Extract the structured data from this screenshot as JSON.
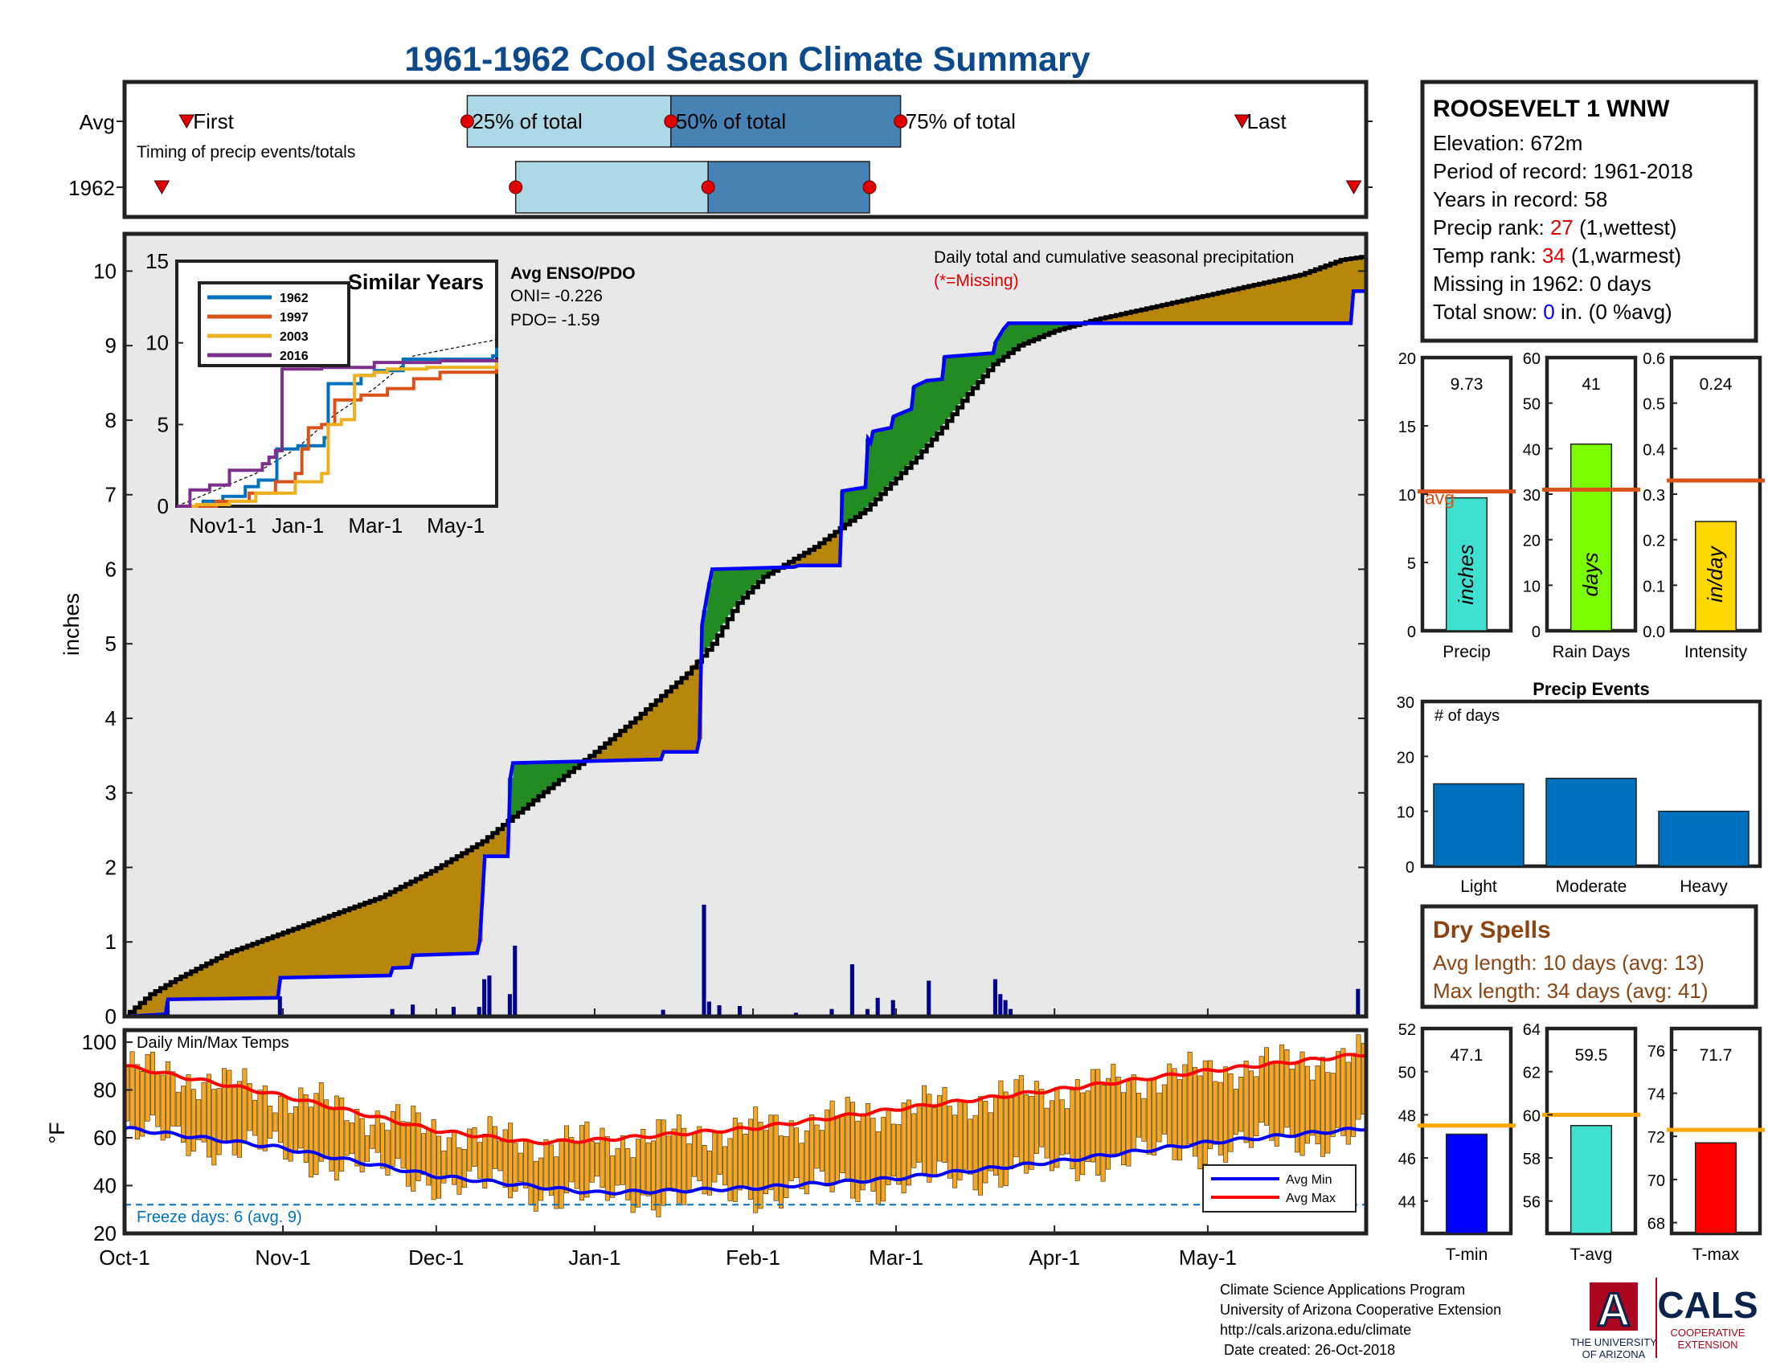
{
  "title": "1961-1962 Cool Season Climate Summary",
  "timing": {
    "rows": [
      "Avg",
      "1962"
    ],
    "caption": "Timing of precip events/totals",
    "labels": {
      "first": "First",
      "p25": "25% of total",
      "p50": "50% of total",
      "p75": "75% of total",
      "last": "Last"
    },
    "avg": {
      "first": 0.05,
      "p25": 0.276,
      "p50": 0.44,
      "p75": 0.625,
      "last": 0.9
    },
    "y1962": {
      "first": 0.03,
      "p25": 0.315,
      "p50": 0.47,
      "p75": 0.6,
      "last": 0.99
    },
    "colors": {
      "light": "#add8e6",
      "dark": "#4682b4",
      "marker": "#e00000"
    }
  },
  "station": {
    "name": "ROOSEVELT 1 WNW",
    "elevation": "Elevation: 672m",
    "period": "Period of record: 1961-2018",
    "years": "Years in record: 58",
    "precip_rank_label": "Precip rank: ",
    "precip_rank_value": "27",
    "precip_rank_suffix": " (1,wettest)",
    "temp_rank_label": "Temp rank: ",
    "temp_rank_value": "34",
    "temp_rank_suffix": " (1,warmest)",
    "missing": "Missing in 1962: 0 days",
    "snow_label": "Total snow: ",
    "snow_value": "0",
    "snow_suffix": " in. (0 %avg)"
  },
  "chart_data": [
    {
      "type": "area",
      "name": "main-precip",
      "ylabel": "inches",
      "ylim": [
        0,
        10.5
      ],
      "yticks": [
        0,
        1,
        2,
        3,
        4,
        5,
        6,
        7,
        8,
        9,
        10
      ],
      "xlim_days": [
        0,
        243
      ],
      "xticks": [
        {
          "day": 0,
          "label": "Oct-1"
        },
        {
          "day": 31,
          "label": "Nov-1"
        },
        {
          "day": 61,
          "label": "Dec-1"
        },
        {
          "day": 92,
          "label": "Jan-1"
        },
        {
          "day": 123,
          "label": "Feb-1"
        },
        {
          "day": 151,
          "label": "Mar-1"
        },
        {
          "day": 182,
          "label": "Apr-1"
        },
        {
          "day": 212,
          "label": "May-1"
        }
      ],
      "annotation": "Daily total and cumulative seasonal precipitation",
      "missing_note": "(*=Missing)",
      "avg_cumulative": [
        [
          0,
          0
        ],
        [
          5,
          0.3
        ],
        [
          10,
          0.5
        ],
        [
          20,
          0.85
        ],
        [
          30,
          1.1
        ],
        [
          40,
          1.35
        ],
        [
          50,
          1.6
        ],
        [
          60,
          1.95
        ],
        [
          70,
          2.35
        ],
        [
          80,
          2.9
        ],
        [
          92,
          3.55
        ],
        [
          100,
          4.0
        ],
        [
          110,
          4.6
        ],
        [
          115,
          5.0
        ],
        [
          120,
          5.55
        ],
        [
          125,
          5.9
        ],
        [
          130,
          6.1
        ],
        [
          135,
          6.3
        ],
        [
          140,
          6.55
        ],
        [
          145,
          6.8
        ],
        [
          150,
          7.15
        ],
        [
          155,
          7.5
        ],
        [
          160,
          7.9
        ],
        [
          165,
          8.35
        ],
        [
          170,
          8.75
        ],
        [
          175,
          9.0
        ],
        [
          182,
          9.2
        ],
        [
          190,
          9.35
        ],
        [
          200,
          9.5
        ],
        [
          210,
          9.65
        ],
        [
          220,
          9.8
        ],
        [
          230,
          9.95
        ],
        [
          238,
          10.15
        ],
        [
          243,
          10.2
        ]
      ],
      "y1962_cumulative": [
        [
          0,
          0
        ],
        [
          8,
          0.03
        ],
        [
          8.5,
          0.23
        ],
        [
          30,
          0.25
        ],
        [
          30.5,
          0.52
        ],
        [
          52,
          0.55
        ],
        [
          52.5,
          0.65
        ],
        [
          56,
          0.66
        ],
        [
          56.5,
          0.82
        ],
        [
          69,
          0.85
        ],
        [
          69.5,
          1.0
        ],
        [
          70,
          1.55
        ],
        [
          70.5,
          2.15
        ],
        [
          75,
          2.15
        ],
        [
          75.5,
          3.2
        ],
        [
          76,
          3.4
        ],
        [
          105,
          3.45
        ],
        [
          105.5,
          3.55
        ],
        [
          112,
          3.55
        ],
        [
          112.5,
          3.72
        ],
        [
          113,
          5.25
        ],
        [
          114,
          5.65
        ],
        [
          115,
          6.0
        ],
        [
          131,
          6.03
        ],
        [
          132,
          6.05
        ],
        [
          140,
          6.05
        ],
        [
          140.5,
          7.05
        ],
        [
          145,
          7.1
        ],
        [
          145.5,
          7.75
        ],
        [
          146,
          7.7
        ],
        [
          146.5,
          7.85
        ],
        [
          150,
          7.9
        ],
        [
          150.5,
          8.05
        ],
        [
          154,
          8.15
        ],
        [
          154.5,
          8.45
        ],
        [
          157,
          8.53
        ],
        [
          160,
          8.55
        ],
        [
          160.5,
          8.85
        ],
        [
          170,
          8.9
        ],
        [
          170.5,
          9.05
        ],
        [
          172,
          9.22
        ],
        [
          173,
          9.3
        ],
        [
          240,
          9.3
        ],
        [
          240.5,
          9.73
        ],
        [
          243,
          9.73
        ]
      ],
      "daily_1962": [
        [
          8,
          0.2
        ],
        [
          30,
          0.27
        ],
        [
          52,
          0.1
        ],
        [
          56,
          0.16
        ],
        [
          64,
          0.13
        ],
        [
          69,
          0.13
        ],
        [
          70,
          0.5
        ],
        [
          71,
          0.55
        ],
        [
          75,
          0.3
        ],
        [
          76,
          0.95
        ],
        [
          105,
          0.09
        ],
        [
          113,
          1.5
        ],
        [
          114,
          0.2
        ],
        [
          116,
          0.15
        ],
        [
          120,
          0.14
        ],
        [
          131,
          0.05
        ],
        [
          138,
          0.1
        ],
        [
          142,
          0.7
        ],
        [
          145,
          0.1
        ],
        [
          147,
          0.25
        ],
        [
          150,
          0.22
        ],
        [
          157,
          0.48
        ],
        [
          170,
          0.5
        ],
        [
          171,
          0.3
        ],
        [
          172,
          0.22
        ],
        [
          173,
          0.1
        ],
        [
          241,
          0.37
        ]
      ],
      "colors": {
        "avg": "#000000",
        "y1962": "#0000ff",
        "above": "#b8860b",
        "below": "#228b22",
        "bg": "#e8e8e8",
        "bars": "#00008b"
      }
    },
    {
      "type": "line",
      "name": "similar-years",
      "title": "Similar Years",
      "ylim": [
        0,
        15
      ],
      "yticks": [
        0,
        5,
        10,
        15
      ],
      "xticks": [
        "Nov1-1",
        "Jan-1",
        "Mar-1",
        "May-1"
      ],
      "series": [
        {
          "name": "1962",
          "color": "#0072bd",
          "points": [
            [
              0,
              0
            ],
            [
              20,
              0.3
            ],
            [
              35,
              0.6
            ],
            [
              52,
              1.2
            ],
            [
              62,
              1.6
            ],
            [
              76,
              3.5
            ],
            [
              92,
              3.7
            ],
            [
              112,
              4.2
            ],
            [
              115,
              7.5
            ],
            [
              140,
              8.0
            ],
            [
              150,
              8.3
            ],
            [
              172,
              9.0
            ],
            [
              240,
              9.2
            ],
            [
              243,
              9.7
            ]
          ]
        },
        {
          "name": "1997",
          "color": "#d95319",
          "points": [
            [
              0,
              0
            ],
            [
              30,
              0.3
            ],
            [
              55,
              0.8
            ],
            [
              75,
              1.5
            ],
            [
              90,
              2.0
            ],
            [
              95,
              3.5
            ],
            [
              100,
              4.8
            ],
            [
              110,
              5.0
            ],
            [
              120,
              6.5
            ],
            [
              140,
              6.8
            ],
            [
              160,
              7.2
            ],
            [
              180,
              7.8
            ],
            [
              200,
              8.2
            ],
            [
              243,
              8.6
            ]
          ]
        },
        {
          "name": "2003",
          "color": "#edb120",
          "points": [
            [
              0,
              0
            ],
            [
              15,
              0.1
            ],
            [
              40,
              0.3
            ],
            [
              60,
              0.8
            ],
            [
              90,
              1.5
            ],
            [
              110,
              2.0
            ],
            [
              115,
              5.0
            ],
            [
              125,
              5.3
            ],
            [
              135,
              8.0
            ],
            [
              150,
              8.2
            ],
            [
              160,
              8.4
            ],
            [
              190,
              8.5
            ],
            [
              243,
              9.0
            ]
          ]
        },
        {
          "name": "2016",
          "color": "#7e2f8e",
          "points": [
            [
              0,
              0
            ],
            [
              10,
              1.0
            ],
            [
              25,
              1.3
            ],
            [
              40,
              2.2
            ],
            [
              60,
              2.2
            ],
            [
              65,
              2.6
            ],
            [
              70,
              3.0
            ],
            [
              75,
              3.4
            ],
            [
              80,
              8.4
            ],
            [
              100,
              8.4
            ],
            [
              110,
              8.5
            ],
            [
              150,
              8.8
            ],
            [
              200,
              8.9
            ],
            [
              243,
              9.0
            ]
          ]
        }
      ],
      "avg_line": [
        [
          0,
          0
        ],
        [
          60,
          2.0
        ],
        [
          92,
          3.6
        ],
        [
          120,
          5.6
        ],
        [
          150,
          7.2
        ],
        [
          180,
          9.2
        ],
        [
          243,
          10.2
        ]
      ]
    },
    {
      "type": "bar",
      "name": "precip-total",
      "xlabel": "Precip",
      "unit": "inches",
      "value": 9.73,
      "value_label": "9.73",
      "avg": 10.2,
      "avg_label": "avg",
      "ylim": [
        0,
        20
      ],
      "yticks": [
        0,
        5,
        10,
        15,
        20
      ],
      "color": "#40e0d0"
    },
    {
      "type": "bar",
      "name": "rain-days",
      "xlabel": "Rain Days",
      "unit": "days",
      "value": 41,
      "value_label": "41",
      "avg": 31,
      "ylim": [
        0,
        60
      ],
      "yticks": [
        0,
        10,
        20,
        30,
        40,
        50,
        60
      ],
      "color": "#7cfc00"
    },
    {
      "type": "bar",
      "name": "intensity",
      "xlabel": "Intensity",
      "unit": "in/day",
      "value": 0.24,
      "value_label": "0.24",
      "avg": 0.33,
      "ylim": [
        0,
        0.6
      ],
      "yticks": [
        0,
        0.1,
        0.2,
        0.3,
        0.4,
        0.5,
        0.6
      ],
      "color": "#ffd700"
    },
    {
      "type": "bar",
      "name": "precip-events",
      "title": "Precip Events",
      "annotation": "# of days",
      "categories": [
        "Light",
        "Moderate",
        "Heavy"
      ],
      "values": [
        15,
        16,
        10
      ],
      "ylim": [
        0,
        30
      ],
      "yticks": [
        0,
        10,
        20,
        30
      ],
      "color": "#0072bd"
    },
    {
      "type": "bar",
      "name": "daily-temps",
      "title": "Daily Min/Max Temps",
      "ylabel": "°F",
      "ylim": [
        20,
        105
      ],
      "yticks": [
        20,
        40,
        60,
        80,
        100
      ],
      "freeze_line": 32,
      "freeze_text": "Freeze days: 6 (avg. 9)",
      "legend": [
        "Avg Min",
        "Avg Max"
      ],
      "avg_min": [
        [
          0,
          64
        ],
        [
          30,
          56
        ],
        [
          61,
          44
        ],
        [
          92,
          37
        ],
        [
          110,
          38
        ],
        [
          123,
          39
        ],
        [
          151,
          43
        ],
        [
          182,
          50
        ],
        [
          212,
          58
        ],
        [
          243,
          64
        ]
      ],
      "avg_max": [
        [
          0,
          90
        ],
        [
          30,
          78
        ],
        [
          61,
          63
        ],
        [
          80,
          58
        ],
        [
          92,
          59
        ],
        [
          123,
          64
        ],
        [
          151,
          72
        ],
        [
          182,
          80
        ],
        [
          212,
          88
        ],
        [
          243,
          95
        ]
      ],
      "colors": {
        "bars": "#f5a623",
        "min": "#0000ff",
        "max": "#ff0000",
        "freeze": "#0072bd"
      }
    },
    {
      "type": "bar",
      "name": "t-min",
      "xlabel": "T-min",
      "value": 47.1,
      "value_label": "47.1",
      "avg": 47.5,
      "ylim": [
        42.5,
        52
      ],
      "yticks": [
        44,
        46,
        48,
        50,
        52
      ],
      "color": "#0000ff"
    },
    {
      "type": "bar",
      "name": "t-avg",
      "xlabel": "T-avg",
      "value": 59.5,
      "value_label": "59.5",
      "avg": 60,
      "ylim": [
        54.5,
        64
      ],
      "yticks": [
        56,
        58,
        60,
        62,
        64
      ],
      "color": "#40e0d0"
    },
    {
      "type": "bar",
      "name": "t-max",
      "xlabel": "T-max",
      "value": 71.7,
      "value_label": "71.7",
      "avg": 72.3,
      "ylim": [
        67.5,
        77
      ],
      "yticks": [
        68,
        70,
        72,
        74,
        76
      ],
      "color": "#ff0000"
    }
  ],
  "dry_spells": {
    "title": "Dry Spells",
    "avg_length": "Avg length: 10 days (avg: 13)",
    "max_length": "Max length: 34 days (avg: 41)",
    "color": "#8b4513"
  },
  "enso": {
    "title": "Avg ENSO/PDO",
    "oni": "ONI= -0.226",
    "pdo": "PDO= -1.59"
  },
  "footer": {
    "line1": "Climate Science Applications Program",
    "line2": "University of Arizona Cooperative Extension",
    "line3": "http://cals.arizona.edu/climate",
    "line4": " Date created: 26-Oct-2018"
  },
  "logos": {
    "ua_letter": "A",
    "ua_line1": "THE UNIVERSITY",
    "ua_line2": "OF ARIZONA",
    "cals": "CALS",
    "cals_line1": "COOPERATIVE",
    "cals_line2": "EXTENSION",
    "ua_color": "#ab0520",
    "navy": "#0c234b"
  }
}
